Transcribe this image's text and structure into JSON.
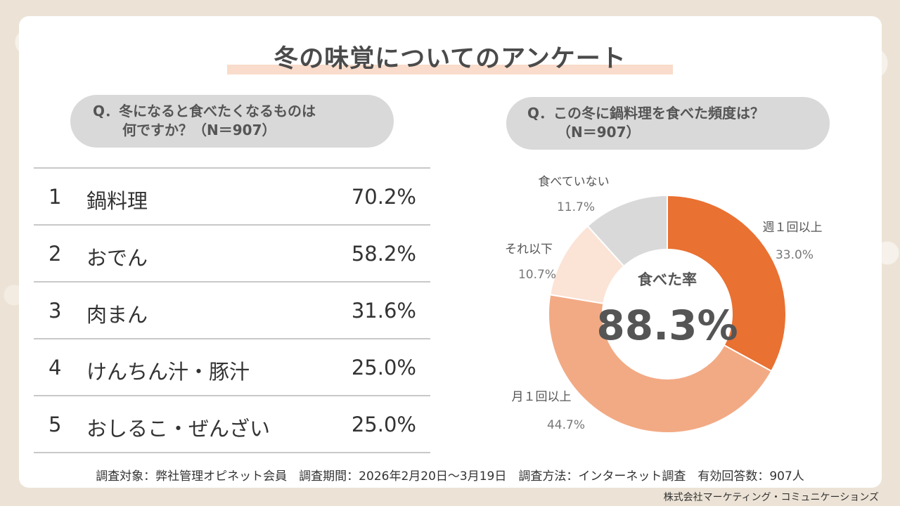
{
  "title": "冬の味覚についてのアンケート",
  "left_question": {
    "line1": "Q．冬になると食べたくなるものは",
    "line2": "何ですか？（N＝907）"
  },
  "right_question": {
    "line1": "Q．この冬に鍋料理を食べた頻度は？",
    "line2": "（N＝907）"
  },
  "ranking": [
    {
      "rank": "1",
      "name": "鍋料理",
      "pct": "70.2%"
    },
    {
      "rank": "2",
      "name": "おでん",
      "pct": "58.2%"
    },
    {
      "rank": "3",
      "name": "肉まん",
      "pct": "31.6%"
    },
    {
      "rank": "4",
      "name": "けんちん汁・豚汁",
      "pct": "25.0%"
    },
    {
      "rank": "5",
      "name": "おしるこ・ぜんざい",
      "pct": "25.0%"
    }
  ],
  "chart_data": {
    "type": "pie",
    "title": "Q．この冬に鍋料理を食べた頻度は？（N＝907）",
    "center_label": "食べた率",
    "center_value": "88.3%",
    "slices": [
      {
        "label": "週１回以上",
        "value": 33.0,
        "value_text": "33.0%",
        "color": "#e97132"
      },
      {
        "label": "月１回以上",
        "value": 44.7,
        "value_text": "44.7%",
        "color": "#f2aa84"
      },
      {
        "label": "それ以下",
        "value": 10.7,
        "value_text": "10.7%",
        "color": "#fbe3d6"
      },
      {
        "label": "食べていない",
        "value": 11.7,
        "value_text": "11.7%",
        "color": "#d9d9d9"
      }
    ]
  },
  "footer": "調査対象：弊社管理オピネット会員　調査期間：2026年2月20日～3月19日　調査方法：インターネット調査　有効回答数：907人",
  "company": "株式会社マーケティング・コミュニケーションズ"
}
